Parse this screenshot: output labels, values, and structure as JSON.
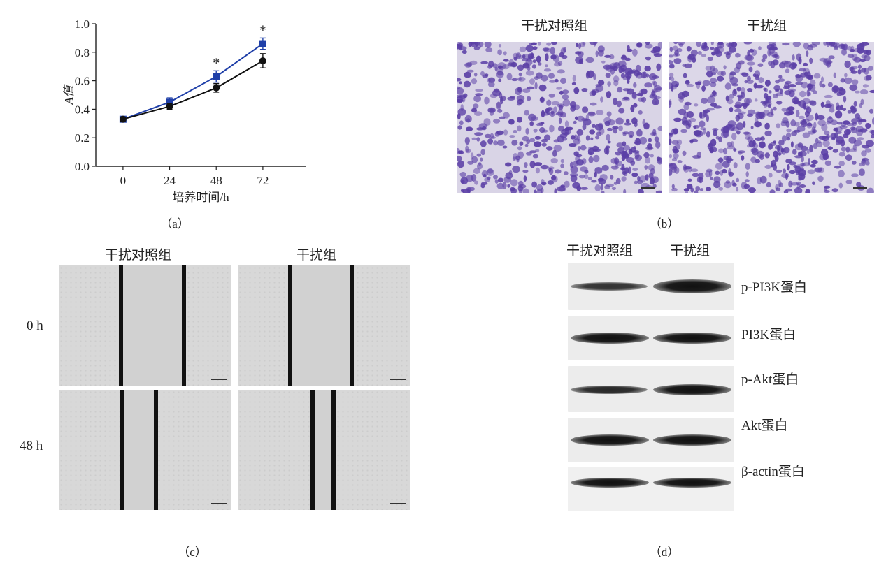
{
  "panel_a": {
    "caption": "（a）",
    "chart_data": {
      "type": "line",
      "x": [
        0,
        24,
        48,
        72
      ],
      "xlabel": "培养时间/h",
      "ylabel": "A值",
      "ylim": [
        0.0,
        1.0
      ],
      "yticks": [
        "0.0",
        "0.2",
        "0.4",
        "0.6",
        "0.8",
        "1.0"
      ],
      "xticks": [
        "0",
        "24",
        "48",
        "72"
      ],
      "series": [
        {
          "values": [
            0.33,
            0.45,
            0.63,
            0.86
          ],
          "errors": [
            0.01,
            0.03,
            0.04,
            0.04
          ],
          "color": "#1f3fa8",
          "marker": "square"
        },
        {
          "values": [
            0.33,
            0.42,
            0.55,
            0.74
          ],
          "errors": [
            0.01,
            0.02,
            0.03,
            0.05
          ],
          "color": "#111111",
          "marker": "circle"
        }
      ],
      "annotations": [
        {
          "x": 48,
          "text": "*"
        },
        {
          "x": 72,
          "text": "*"
        }
      ],
      "grid": false
    }
  },
  "panel_b": {
    "caption": "（b）",
    "labels": [
      "干扰对照组",
      "干扰组"
    ],
    "stain_color": "#5b3fa6"
  },
  "panel_c": {
    "caption": "（c）",
    "columns": [
      "干扰对照组",
      "干扰组"
    ],
    "rows": [
      "0 h",
      "48 h"
    ]
  },
  "panel_d": {
    "caption": "（d）",
    "columns": [
      "干扰对照组",
      "干扰组"
    ],
    "proteins": [
      "p-PI3K蛋白",
      "PI3K蛋白",
      "p-Akt蛋白",
      "Akt蛋白",
      "β-actin蛋白"
    ]
  }
}
